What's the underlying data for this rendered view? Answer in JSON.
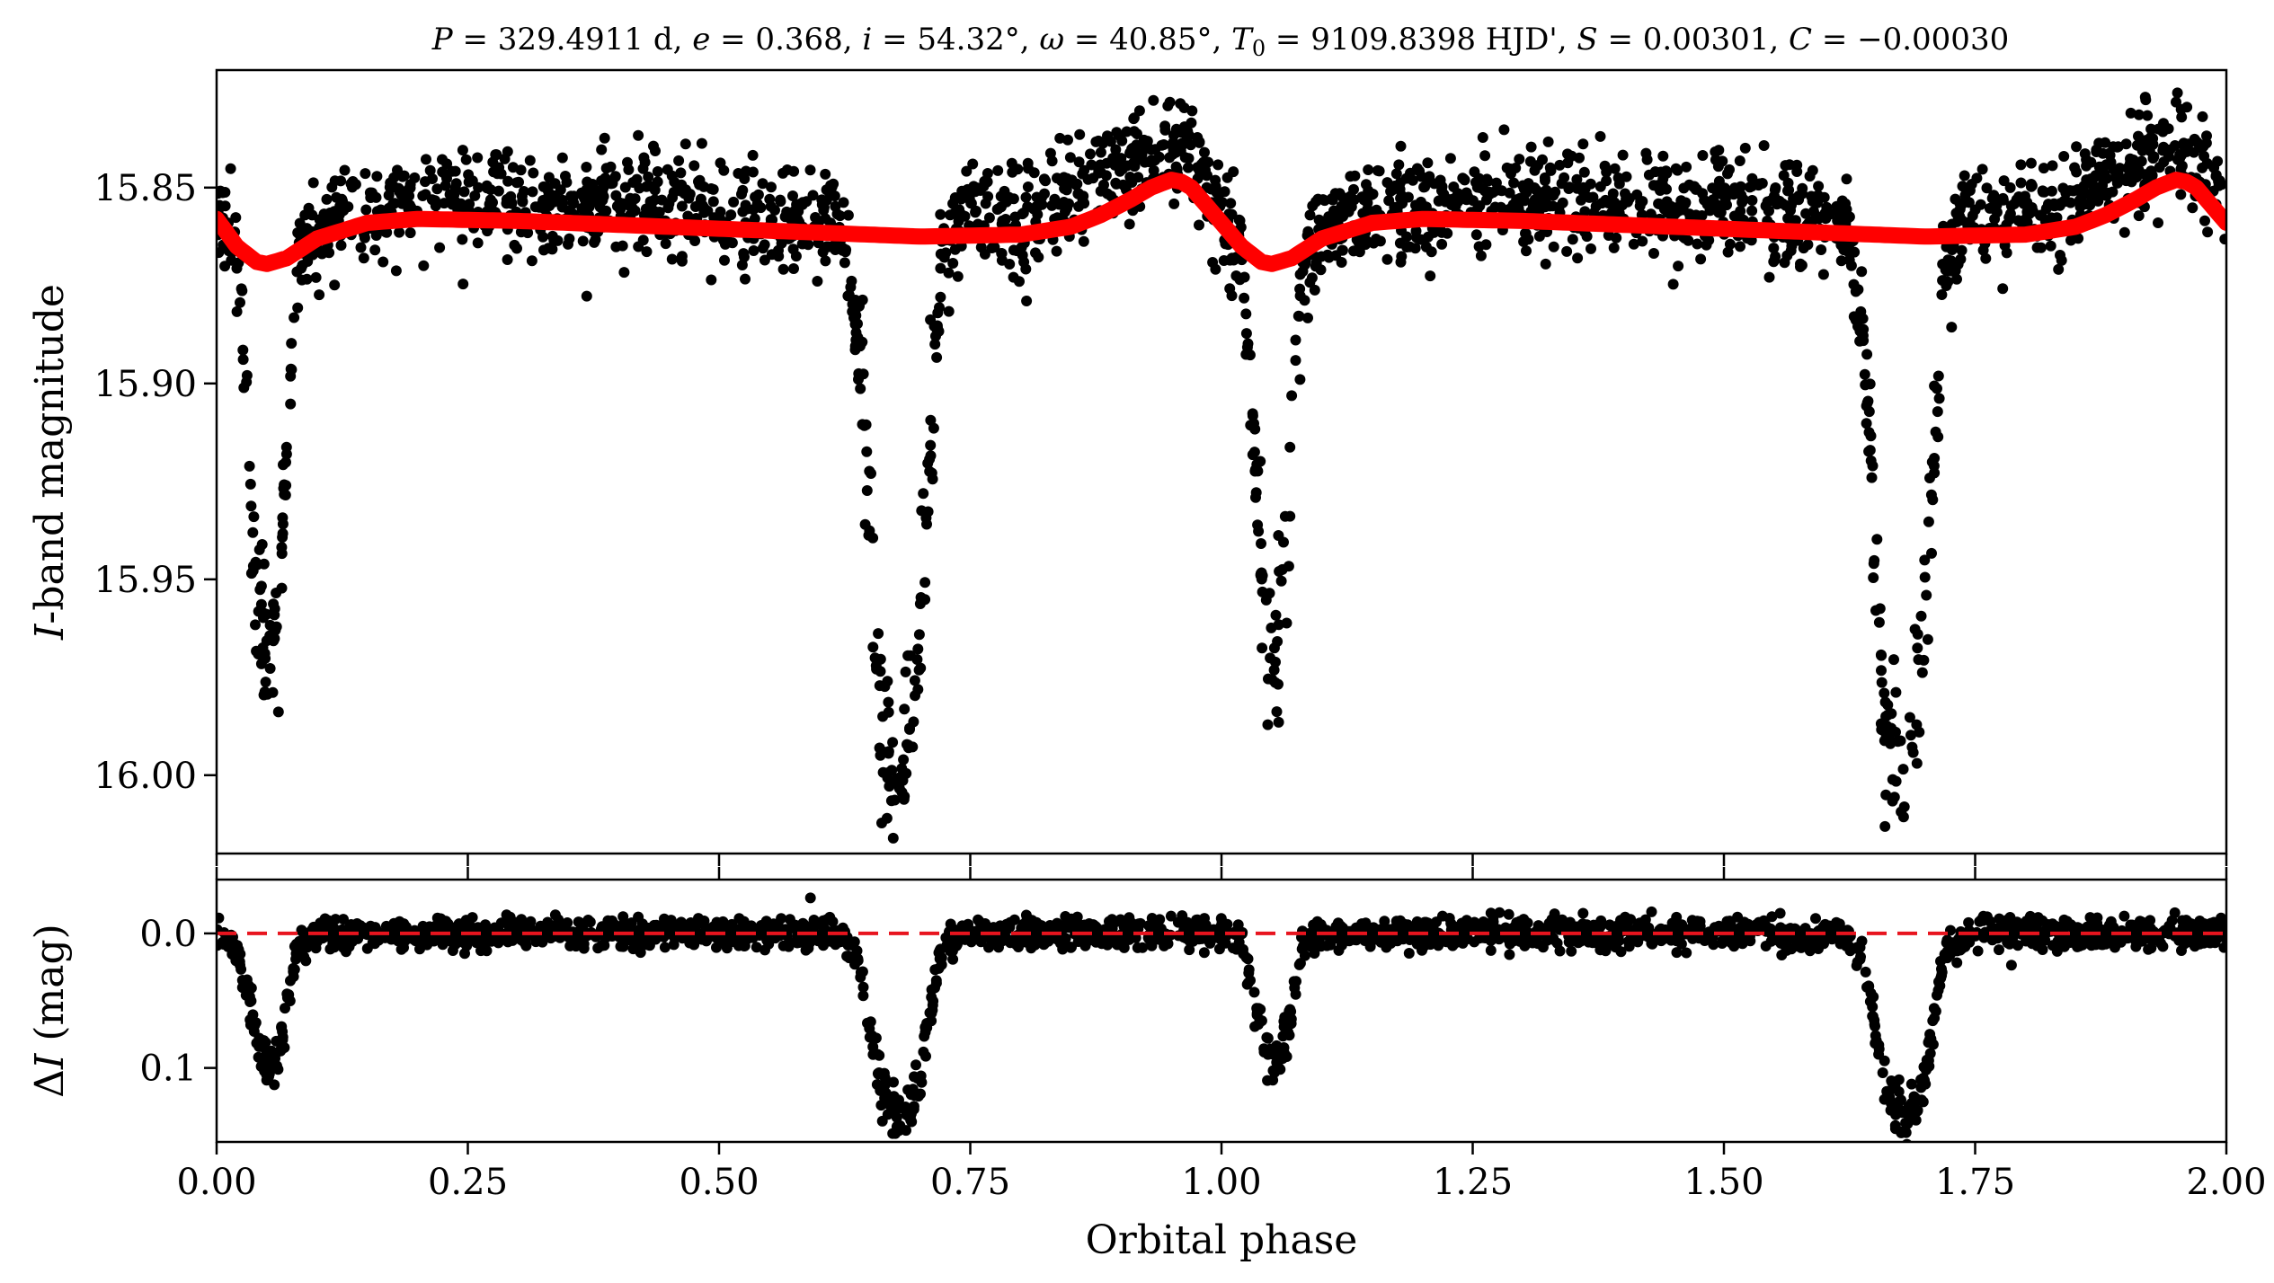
{
  "chart_data": [
    {
      "panel": "top",
      "type": "scatter",
      "title": "P = 329.4911 d, e = 0.368, i = 54.32°, ω = 40.85°, T0 = 9109.8398 HJD', S = 0.00301, C = −0.00030",
      "title_parts": {
        "P_sym": "P",
        "P_val": " = 329.4911 d, ",
        "e_sym": "e",
        "e_val": " = 0.368, ",
        "i_sym": "i",
        "i_val": " = 54.32°, ",
        "w_sym": "ω",
        "w_val": " = 40.85°, ",
        "T_sym": "T",
        "T_sub": "0",
        "T_val": " = 9109.8398 HJD', ",
        "S_sym": "S",
        "S_val": " = 0.00301, ",
        "C_sym": "C",
        "C_val": " = −0.00030"
      },
      "ylabel_italic": "I",
      "ylabel_rest": "-band magnitude",
      "xlim": [
        0.0,
        2.0
      ],
      "ylim": [
        16.02,
        15.82
      ],
      "y_inverted": true,
      "yticks": [
        "15.85",
        "15.90",
        "15.95",
        "16.00"
      ],
      "ytick_values": [
        15.85,
        15.9,
        15.95,
        16.0
      ],
      "series": [
        {
          "role": "observations",
          "marker": "dot",
          "color": "#000000",
          "noise_sd": 0.0065,
          "x": [
            0.0,
            0.01,
            0.02,
            0.03,
            0.04,
            0.05,
            0.06,
            0.07,
            0.08,
            0.1,
            0.15,
            0.25,
            0.5,
            0.62,
            0.64,
            0.66,
            0.68,
            0.7,
            0.72,
            0.74,
            0.8,
            0.9,
            0.95,
            0.97,
            1.0,
            1.02,
            1.03,
            1.04,
            1.05,
            1.06,
            1.07,
            1.08,
            1.1,
            1.15,
            1.25,
            1.5,
            1.62,
            1.64,
            1.66,
            1.68,
            1.7,
            1.72,
            1.74,
            1.8,
            1.9,
            1.95,
            1.97,
            2.0
          ],
          "y": [
            15.855,
            15.858,
            15.868,
            15.905,
            15.95,
            15.972,
            15.96,
            15.915,
            15.87,
            15.86,
            15.856,
            15.853,
            15.856,
            15.858,
            15.89,
            15.985,
            16.005,
            15.96,
            15.87,
            15.855,
            15.858,
            15.845,
            15.838,
            15.842,
            15.858,
            15.865,
            15.905,
            15.95,
            15.972,
            15.96,
            15.915,
            15.87,
            15.86,
            15.856,
            15.853,
            15.856,
            15.858,
            15.89,
            15.985,
            16.005,
            15.96,
            15.87,
            15.855,
            15.858,
            15.845,
            15.838,
            15.842,
            15.855
          ]
        },
        {
          "role": "model",
          "marker": "line",
          "color": "#ff0000",
          "x": [
            0.0,
            0.02,
            0.04,
            0.05,
            0.07,
            0.1,
            0.15,
            0.2,
            0.3,
            0.4,
            0.5,
            0.6,
            0.7,
            0.8,
            0.85,
            0.88,
            0.91,
            0.93,
            0.95,
            0.96,
            0.97,
            0.98,
            0.99,
            1.0,
            1.02,
            1.04,
            1.05,
            1.07,
            1.1,
            1.15,
            1.2,
            1.3,
            1.4,
            1.5,
            1.6,
            1.7,
            1.8,
            1.85,
            1.88,
            1.91,
            1.93,
            1.95,
            1.96,
            1.97,
            1.98,
            1.99,
            2.0
          ],
          "y": [
            15.858,
            15.865,
            15.869,
            15.8695,
            15.868,
            15.863,
            15.859,
            15.858,
            15.8585,
            15.8595,
            15.8605,
            15.8615,
            15.8625,
            15.862,
            15.86,
            15.857,
            15.853,
            15.85,
            15.848,
            15.8485,
            15.85,
            15.853,
            15.856,
            15.859,
            15.865,
            15.869,
            15.8695,
            15.868,
            15.863,
            15.859,
            15.858,
            15.8585,
            15.8595,
            15.8605,
            15.8615,
            15.8625,
            15.862,
            15.86,
            15.857,
            15.853,
            15.85,
            15.848,
            15.8485,
            15.85,
            15.853,
            15.856,
            15.859
          ]
        }
      ]
    },
    {
      "panel": "bottom",
      "type": "scatter",
      "xlabel": "Orbital phase",
      "ylabel_prefix": "Δ",
      "ylabel_italic": "I",
      "ylabel_rest": " (mag)",
      "xlim": [
        0.0,
        2.0
      ],
      "ylim": [
        0.155,
        -0.04
      ],
      "y_inverted": true,
      "yticks": [
        "0.0",
        "0.1"
      ],
      "ytick_values": [
        0.0,
        0.1
      ],
      "xticks": [
        "0.00",
        "0.25",
        "0.50",
        "0.75",
        "1.00",
        "1.25",
        "1.50",
        "1.75",
        "2.00"
      ],
      "xtick_values": [
        0.0,
        0.25,
        0.5,
        0.75,
        1.0,
        1.25,
        1.5,
        1.75,
        2.0
      ],
      "series": [
        {
          "role": "residuals",
          "marker": "dot",
          "color": "#000000",
          "noise_sd": 0.0055,
          "x": [
            0.0,
            0.01,
            0.02,
            0.03,
            0.04,
            0.05,
            0.06,
            0.07,
            0.08,
            0.1,
            0.25,
            0.5,
            0.62,
            0.64,
            0.66,
            0.68,
            0.7,
            0.72,
            0.74,
            0.8,
            0.95,
            1.0,
            1.02,
            1.03,
            1.04,
            1.05,
            1.06,
            1.07,
            1.08,
            1.1,
            1.25,
            1.5,
            1.62,
            1.64,
            1.66,
            1.68,
            1.7,
            1.72,
            1.74,
            1.8,
            1.95,
            2.0
          ],
          "y": [
            0.0,
            0.005,
            0.015,
            0.04,
            0.075,
            0.095,
            0.09,
            0.055,
            0.01,
            0.0,
            0.0,
            0.0,
            0.0,
            0.025,
            0.11,
            0.14,
            0.11,
            0.015,
            0.0,
            0.0,
            0.0,
            0.0,
            0.005,
            0.04,
            0.075,
            0.095,
            0.09,
            0.055,
            0.01,
            0.0,
            0.0,
            0.0,
            0.0,
            0.025,
            0.11,
            0.14,
            0.11,
            0.015,
            0.0,
            0.0,
            0.0,
            0.0
          ]
        },
        {
          "role": "zero-line",
          "marker": "dashed-line",
          "color": "#e8141e",
          "x": [
            0.0,
            2.0
          ],
          "y": [
            0.0,
            0.0
          ]
        }
      ]
    }
  ]
}
